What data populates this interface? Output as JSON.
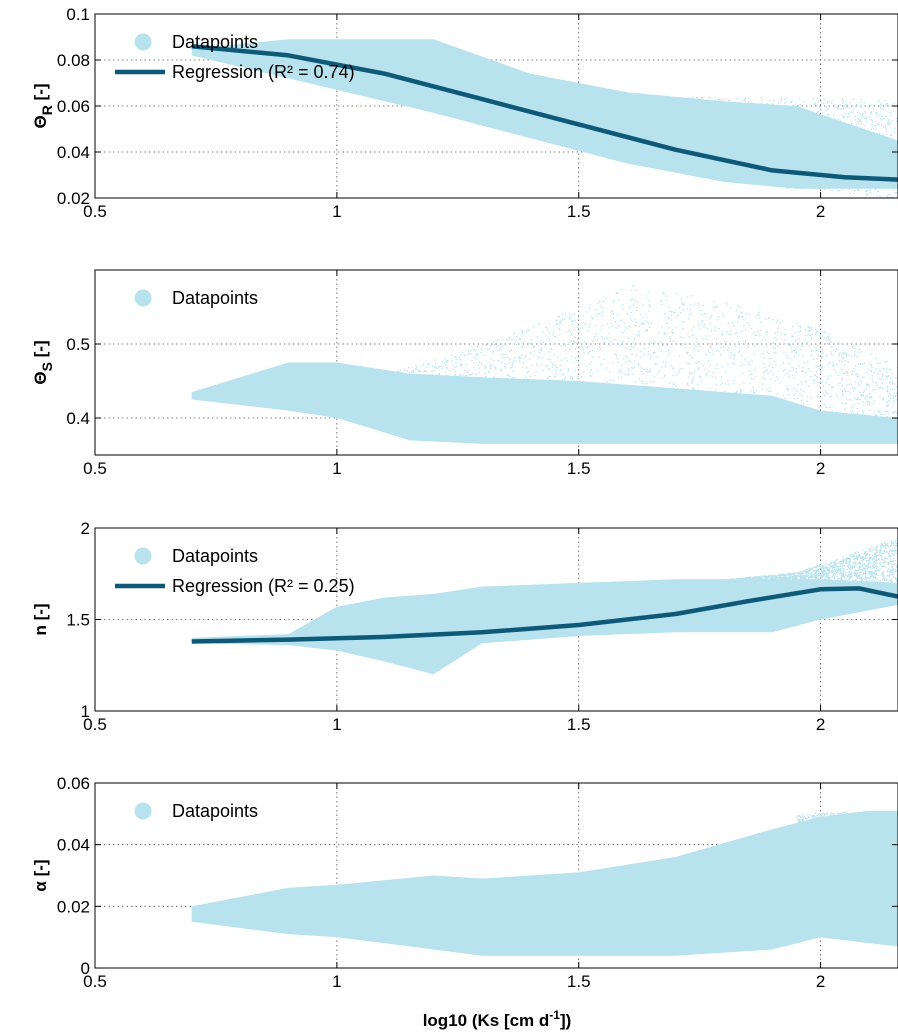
{
  "colors": {
    "data": "#b8e3ee",
    "regression": "#0e5878"
  },
  "xlabel_main": "log10 (Ks [cm d",
  "xlabel_sup": "-1",
  "xlabel_tail": "])",
  "chart_data": [
    {
      "type": "scatter",
      "ylabel_base": "Θ",
      "ylabel_sub": "R",
      "ylabel_tail": " [-]",
      "xlim": [
        0.5,
        2.16
      ],
      "ylim": [
        0.02,
        0.1
      ],
      "xticks": [
        0.5,
        1,
        1.5,
        2
      ],
      "xtick_labels": [
        "0.5",
        "1",
        "1.5",
        "2"
      ],
      "yticks": [
        0.02,
        0.04,
        0.06,
        0.08,
        0.1
      ],
      "ytick_labels": [
        "0.02",
        "0.04",
        "0.06",
        "0.08",
        "0.1"
      ],
      "legend": [
        "Datapoints",
        "Regression (R² = 0.74)"
      ],
      "dense_band": {
        "x": [
          0.7,
          0.9,
          1.0,
          1.2,
          1.4,
          1.6,
          1.8,
          1.95,
          2.16
        ],
        "upper": [
          0.085,
          0.089,
          0.089,
          0.089,
          0.074,
          0.066,
          0.062,
          0.06,
          0.045
        ],
        "lower": [
          0.082,
          0.072,
          0.067,
          0.057,
          0.046,
          0.035,
          0.027,
          0.024,
          0.024
        ]
      },
      "sparse_band": {
        "x": [
          1.3,
          1.5,
          1.7,
          1.9,
          2.16
        ],
        "upper": [
          0.068,
          0.066,
          0.064,
          0.064,
          0.063
        ],
        "lower": [
          0.06,
          0.05,
          0.035,
          0.025,
          0.02
        ]
      },
      "series": [
        {
          "name": "Regression (R² = 0.74)",
          "x": [
            0.7,
            0.9,
            1.1,
            1.3,
            1.5,
            1.7,
            1.9,
            2.05,
            2.16
          ],
          "y": [
            0.086,
            0.082,
            0.074,
            0.063,
            0.052,
            0.041,
            0.032,
            0.029,
            0.028
          ]
        }
      ]
    },
    {
      "type": "scatter",
      "ylabel_base": "Θ",
      "ylabel_sub": "S",
      "ylabel_tail": " [-]",
      "xlim": [
        0.5,
        2.16
      ],
      "ylim": [
        0.35,
        0.6
      ],
      "xticks": [
        0.5,
        1,
        1.5,
        2
      ],
      "xtick_labels": [
        "0.5",
        "1",
        "1.5",
        "2"
      ],
      "yticks": [
        0.4,
        0.5
      ],
      "ytick_labels": [
        "0.4",
        "0.5"
      ],
      "legend": [
        "Datapoints"
      ],
      "dense_band": {
        "x": [
          0.7,
          0.9,
          1.0,
          1.15,
          1.3,
          1.5,
          1.7,
          1.9,
          2.0,
          2.16
        ],
        "upper": [
          0.435,
          0.475,
          0.475,
          0.46,
          0.455,
          0.45,
          0.44,
          0.43,
          0.41,
          0.4
        ],
        "lower": [
          0.425,
          0.41,
          0.4,
          0.37,
          0.365,
          0.365,
          0.365,
          0.365,
          0.365,
          0.365
        ]
      },
      "sparse_band": {
        "x": [
          1.1,
          1.3,
          1.5,
          1.6,
          1.8,
          2.0,
          2.16
        ],
        "upper": [
          0.46,
          0.5,
          0.55,
          0.58,
          0.56,
          0.52,
          0.47
        ],
        "lower": [
          0.42,
          0.38,
          0.37,
          0.37,
          0.37,
          0.38,
          0.38
        ]
      },
      "series": []
    },
    {
      "type": "scatter",
      "ylabel_base": "n",
      "ylabel_sub": "",
      "ylabel_tail": " [-]",
      "xlim": [
        0.5,
        2.16
      ],
      "ylim": [
        1,
        2
      ],
      "xticks": [
        0.5,
        1,
        1.5,
        2
      ],
      "xtick_labels": [
        "0.5",
        "1",
        "1.5",
        "2"
      ],
      "yticks": [
        1,
        1.5,
        2
      ],
      "ytick_labels": [
        "1",
        "1.5",
        "2"
      ],
      "legend": [
        "Datapoints",
        "Regression (R² = 0.25)"
      ],
      "dense_band": {
        "x": [
          0.7,
          0.9,
          1.0,
          1.1,
          1.2,
          1.3,
          1.5,
          1.7,
          1.9,
          2.0,
          2.16
        ],
        "upper": [
          1.4,
          1.42,
          1.57,
          1.62,
          1.64,
          1.68,
          1.7,
          1.72,
          1.72,
          1.72,
          1.7
        ],
        "lower": [
          1.37,
          1.36,
          1.33,
          1.27,
          1.2,
          1.37,
          1.41,
          1.43,
          1.43,
          1.5,
          1.58
        ]
      },
      "sparse_band": {
        "x": [
          1.8,
          1.95,
          2.05,
          2.16
        ],
        "upper": [
          1.72,
          1.76,
          1.85,
          1.95
        ],
        "lower": [
          1.7,
          1.68,
          1.65,
          1.62
        ]
      },
      "series": [
        {
          "name": "Regression (R² = 0.25)",
          "x": [
            0.7,
            0.9,
            1.1,
            1.3,
            1.5,
            1.7,
            1.85,
            2.0,
            2.08,
            2.16
          ],
          "y": [
            1.38,
            1.39,
            1.405,
            1.43,
            1.47,
            1.53,
            1.6,
            1.665,
            1.67,
            1.625
          ]
        }
      ]
    },
    {
      "type": "scatter",
      "ylabel_base": "α",
      "ylabel_sub": "",
      "ylabel_tail": " [-]",
      "xlim": [
        0.5,
        2.16
      ],
      "ylim": [
        0,
        0.06
      ],
      "xticks": [
        0.5,
        1,
        1.5,
        2
      ],
      "xtick_labels": [
        "0.5",
        "1",
        "1.5",
        "2"
      ],
      "yticks": [
        0,
        0.02,
        0.04,
        0.06
      ],
      "ytick_labels": [
        "0",
        "0.02",
        "0.04",
        "0.06"
      ],
      "legend": [
        "Datapoints"
      ],
      "dense_band": {
        "x": [
          0.7,
          0.9,
          1.0,
          1.2,
          1.3,
          1.5,
          1.7,
          1.9,
          2.0,
          2.1,
          2.16
        ],
        "upper": [
          0.02,
          0.026,
          0.027,
          0.03,
          0.029,
          0.031,
          0.036,
          0.045,
          0.049,
          0.051,
          0.051
        ],
        "lower": [
          0.015,
          0.011,
          0.01,
          0.006,
          0.004,
          0.004,
          0.004,
          0.006,
          0.01,
          0.008,
          0.007
        ]
      },
      "sparse_band": {
        "x": [
          1.95,
          2.05,
          2.16
        ],
        "upper": [
          0.05,
          0.051,
          0.05
        ],
        "lower": [
          0.025,
          0.02,
          0.018
        ]
      },
      "series": []
    }
  ]
}
